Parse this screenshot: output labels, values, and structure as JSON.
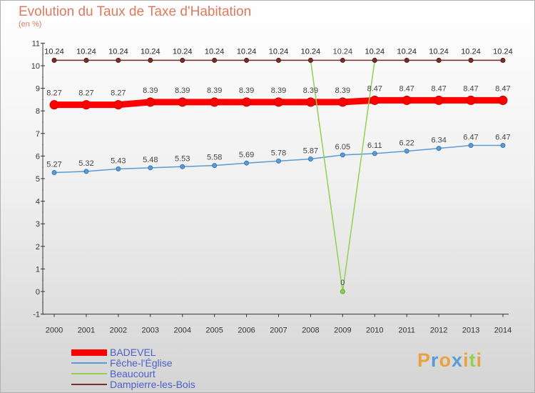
{
  "chart_data": {
    "type": "line",
    "title": "Evolution du Taux de Taxe d'Habitation",
    "subtitle": "(en %)",
    "xlabel": "",
    "ylabel": "",
    "x": [
      "2000",
      "2001",
      "2002",
      "2003",
      "2004",
      "2005",
      "2006",
      "2007",
      "2008",
      "2009",
      "2010",
      "2011",
      "2012",
      "2013",
      "2014"
    ],
    "ylim": [
      -1,
      11
    ],
    "yticks": [
      "-1",
      "0",
      "1",
      "2",
      "3",
      "4",
      "5",
      "6",
      "7",
      "8",
      "9",
      "10",
      "11"
    ],
    "grid": false,
    "legend_position": "bottom-left",
    "series": [
      {
        "name": "BADEVEL",
        "color": "#ff0000",
        "values": [
          8.27,
          8.27,
          8.27,
          8.39,
          8.39,
          8.39,
          8.39,
          8.39,
          8.39,
          8.39,
          8.47,
          8.47,
          8.47,
          8.47,
          8.47
        ],
        "labels": [
          "8.27",
          "8.27",
          "8.27",
          "8.39",
          "8.39",
          "8.39",
          "8.39",
          "8.39",
          "8.39",
          "8.39",
          "8.47",
          "8.47",
          "8.47",
          "8.47",
          "8.47"
        ]
      },
      {
        "name": "Fêche-l'Église",
        "color": "#5b9bd5",
        "values": [
          5.27,
          5.32,
          5.43,
          5.48,
          5.53,
          5.58,
          5.69,
          5.78,
          5.87,
          6.05,
          6.11,
          6.22,
          6.34,
          6.47,
          6.47
        ],
        "labels": [
          "5.27",
          "5.32",
          "5.43",
          "5.48",
          "5.53",
          "5.58",
          "5.69",
          "5.78",
          "5.87",
          "6.05",
          "6.11",
          "6.22",
          "6.34",
          "6.47",
          "6.47"
        ]
      },
      {
        "name": "Beaucourt",
        "color": "#92d050",
        "values": [
          10.24,
          10.24,
          10.24,
          10.24,
          10.24,
          10.24,
          10.24,
          10.24,
          10.24,
          0,
          10.24,
          10.24,
          10.24,
          10.24,
          10.24
        ],
        "labels": [
          "10.24",
          "10.24",
          "10.24",
          "10.24",
          "10.24",
          "10.24",
          "10.24",
          "10.24",
          "10.24",
          "0",
          "10.24",
          "10.24",
          "10.24",
          "10.24",
          "10.24"
        ]
      },
      {
        "name": "Dampierre-les-Bois",
        "color": "#7b2c2c",
        "values": [
          10.24,
          10.24,
          10.24,
          10.24,
          10.24,
          10.24,
          10.24,
          10.24,
          10.24,
          10.24,
          10.24,
          10.24,
          10.24,
          10.24,
          10.24
        ],
        "labels": [
          "10.24",
          "10.24",
          "10.24",
          "10.24",
          "10.24",
          "10.24",
          "10.24",
          "10.24",
          "10.24",
          "10.24",
          "10.24",
          "10.24",
          "10.24",
          "10.24",
          "10.24"
        ]
      }
    ]
  },
  "logo": {
    "text": "Proxiti",
    "colors": [
      "#e8a33c",
      "#5b9bd5",
      "#e8a33c",
      "#5b9bd5",
      "#e8a33c",
      "#92d050",
      "#e8a33c"
    ]
  }
}
